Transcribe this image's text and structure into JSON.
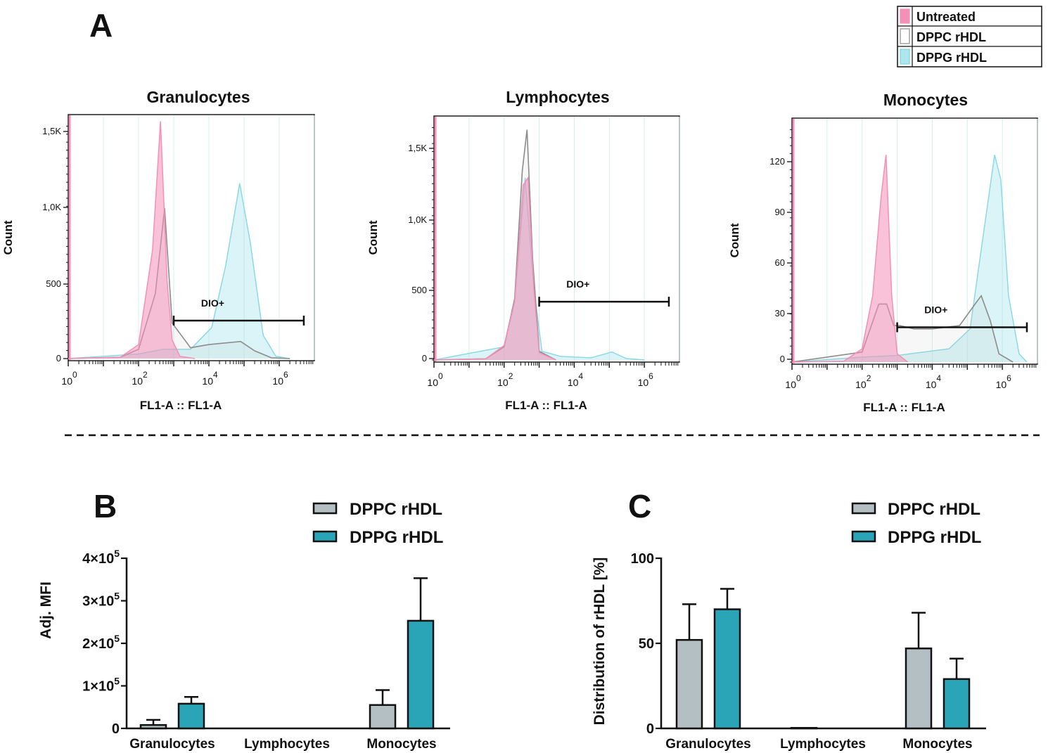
{
  "figure": {
    "panel_a": "A",
    "panel_b": "B",
    "panel_c": "C"
  },
  "colors": {
    "untreated": "#f48fb8",
    "dppc_hist": "#8c8c8c",
    "dppg_hist": "#aee6ee",
    "dppc_bar": "#b3bfc2",
    "dppg_bar": "#2aa5b8"
  },
  "chart_data": [
    {
      "type": "area",
      "title": "Granulocytes",
      "xlabel": "FL1-A :: FL1-A",
      "ylabel": "Count",
      "x_scale": "log",
      "x_tick_labels": [
        "10^0",
        "10^2",
        "10^4",
        "10^6"
      ],
      "y_tick_labels": [
        "0",
        "500",
        "1,0K",
        "1,5K"
      ],
      "ylim": [
        0,
        1550
      ],
      "gate": {
        "label": "DIO+",
        "x_range": [
          1000,
          5000000
        ],
        "y": 245
      },
      "series": [
        {
          "name": "Untreated",
          "points": [
            [
              1,
              0
            ],
            [
              30,
              8
            ],
            [
              100,
              90
            ],
            [
              250,
              700
            ],
            [
              420,
              1530
            ],
            [
              650,
              500
            ],
            [
              900,
              120
            ],
            [
              1500,
              15
            ],
            [
              4000,
              0
            ]
          ]
        },
        {
          "name": "DPPC rHDL",
          "points": [
            [
              1,
              0
            ],
            [
              30,
              8
            ],
            [
              100,
              60
            ],
            [
              300,
              420
            ],
            [
              550,
              970
            ],
            [
              900,
              230
            ],
            [
              3000,
              70
            ],
            [
              10000,
              90
            ],
            [
              80000,
              110
            ],
            [
              200000,
              50
            ],
            [
              600000,
              5
            ],
            [
              2000000,
              0
            ]
          ]
        },
        {
          "name": "DPPG rHDL",
          "points": [
            [
              1,
              0
            ],
            [
              100,
              30
            ],
            [
              500,
              60
            ],
            [
              3000,
              60
            ],
            [
              12000,
              200
            ],
            [
              30000,
              600
            ],
            [
              75000,
              1130
            ],
            [
              150000,
              750
            ],
            [
              350000,
              150
            ],
            [
              800000,
              15
            ],
            [
              2000000,
              0
            ]
          ]
        }
      ]
    },
    {
      "type": "area",
      "title": "Lymphocytes",
      "xlabel": "FL1-A :: FL1-A",
      "ylabel": "Count",
      "x_scale": "log",
      "x_tick_labels": [
        "10^0",
        "10^2",
        "10^4",
        "10^6"
      ],
      "y_tick_labels": [
        "0",
        "500",
        "1,0K",
        "1,5K"
      ],
      "ylim": [
        0,
        1650
      ],
      "gate": {
        "label": "DIO+",
        "x_range": [
          1000,
          5000000
        ],
        "y": 400
      },
      "series": [
        {
          "name": "Untreated",
          "points": [
            [
              1,
              0
            ],
            [
              30,
              8
            ],
            [
              100,
              100
            ],
            [
              200,
              400
            ],
            [
              350,
              1200
            ],
            [
              480,
              1250
            ],
            [
              700,
              500
            ],
            [
              1000,
              50
            ],
            [
              3000,
              0
            ]
          ]
        },
        {
          "name": "DPPC rHDL",
          "points": [
            [
              1,
              0
            ],
            [
              30,
              8
            ],
            [
              100,
              90
            ],
            [
              200,
              420
            ],
            [
              330,
              1300
            ],
            [
              450,
              1580
            ],
            [
              650,
              700
            ],
            [
              1000,
              60
            ],
            [
              3000,
              0
            ]
          ]
        },
        {
          "name": "DPPG rHDL",
          "points": [
            [
              1,
              0
            ],
            [
              100,
              90
            ],
            [
              200,
              400
            ],
            [
              400,
              1250
            ],
            [
              700,
              500
            ],
            [
              1200,
              60
            ],
            [
              4000,
              25
            ],
            [
              30000,
              15
            ],
            [
              120000,
              55
            ],
            [
              300000,
              10
            ],
            [
              1000000,
              0
            ]
          ]
        }
      ]
    },
    {
      "type": "area",
      "title": "Monocytes",
      "xlabel": "FL1-A :: FL1-A",
      "ylabel": "Count",
      "x_scale": "log",
      "x_tick_labels": [
        "10^0",
        "10^2",
        "10^4",
        "10^6"
      ],
      "y_tick_labels": [
        "0",
        "30",
        "60",
        "90",
        "120"
      ],
      "ylim": [
        0,
        145
      ],
      "gate": {
        "label": "DIO+",
        "x_range": [
          1000,
          5000000
        ],
        "y": 21
      },
      "series": [
        {
          "name": "Untreated",
          "points": [
            [
              1,
              0
            ],
            [
              30,
              0.5
            ],
            [
              100,
              8
            ],
            [
              200,
              40
            ],
            [
              350,
              100
            ],
            [
              480,
              125
            ],
            [
              700,
              40
            ],
            [
              1000,
              5
            ],
            [
              2000,
              0
            ]
          ]
        },
        {
          "name": "DPPC rHDL",
          "points": [
            [
              1,
              0
            ],
            [
              100,
              6
            ],
            [
              300,
              35
            ],
            [
              500,
              35
            ],
            [
              800,
              22
            ],
            [
              1200,
              22
            ],
            [
              3000,
              20
            ],
            [
              10000,
              20
            ],
            [
              60000,
              22
            ],
            [
              180000,
              36
            ],
            [
              250000,
              40
            ],
            [
              450000,
              25
            ],
            [
              800000,
              5
            ],
            [
              2000000,
              0
            ]
          ]
        },
        {
          "name": "DPPG rHDL",
          "points": [
            [
              1,
              0
            ],
            [
              100,
              3
            ],
            [
              1000,
              4
            ],
            [
              30000,
              8
            ],
            [
              120000,
              20
            ],
            [
              300000,
              80
            ],
            [
              600000,
              125
            ],
            [
              900000,
              110
            ],
            [
              1500000,
              40
            ],
            [
              3000000,
              5
            ],
            [
              5000000,
              0
            ]
          ]
        }
      ]
    },
    {
      "type": "bar",
      "ylabel": "Adj. MFI",
      "categories": [
        "Granulocytes",
        "Lymphocytes",
        "Monocytes"
      ],
      "ylim": [
        0,
        400000
      ],
      "y_ticks": [
        0,
        100000,
        200000,
        300000,
        400000
      ],
      "y_tick_labels": [
        "0",
        "1×10⁵",
        "2×10⁵",
        "3×10⁵",
        "4×10⁵"
      ],
      "legend": "top-right",
      "series": [
        {
          "name": "DPPC rHDL",
          "values": [
            8000,
            0,
            55000
          ],
          "errors": [
            12000,
            0,
            35000
          ]
        },
        {
          "name": "DPPG rHDL",
          "values": [
            58000,
            0,
            253000
          ],
          "errors": [
            16000,
            0,
            100000
          ]
        }
      ]
    },
    {
      "type": "bar",
      "ylabel": "Distribution of rHDL [%]",
      "categories": [
        "Granulocytes",
        "Lymphocytes",
        "Monocytes"
      ],
      "ylim": [
        0,
        100
      ],
      "y_ticks": [
        0,
        50,
        100
      ],
      "y_tick_labels": [
        "0",
        "50",
        "100"
      ],
      "legend": "top-right",
      "series": [
        {
          "name": "DPPC rHDL",
          "values": [
            52,
            0.3,
            47
          ],
          "errors": [
            21,
            0,
            21
          ]
        },
        {
          "name": "DPPG rHDL",
          "values": [
            70,
            0,
            29
          ],
          "errors": [
            12,
            0,
            12
          ]
        }
      ]
    }
  ]
}
